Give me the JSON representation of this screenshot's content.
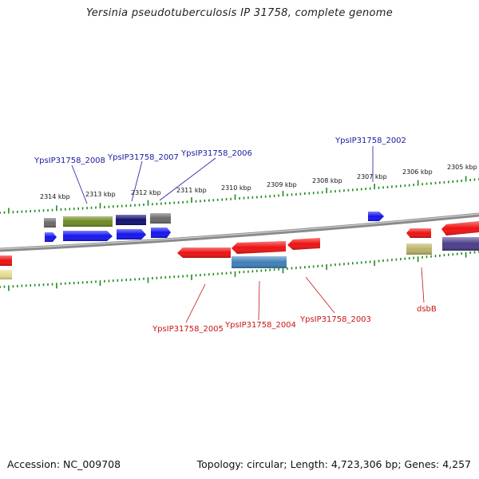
{
  "title": "Yersinia pseudotuberculosis IP 31758, complete genome",
  "accession": "Accession: NC_009708",
  "topology": "Topology: circular; Length: 4,723,306 bp; Genes: 4,257",
  "colors": {
    "backbone": "#8a8a8a",
    "tick": "#1e8c1e",
    "blue_label": "#1a1aa0",
    "red_label": "#c81414",
    "gene_red": "#ee1111",
    "gene_blue": "#1414ee",
    "gene_navy": "#101070",
    "gene_olive": "#6f8a22",
    "gene_grey": "#6a6a6a",
    "gene_steel": "#3f7fb8",
    "gene_khaki": "#b9b36a",
    "gene_purple": "#4a3c8a",
    "gene_yellow": "#e2dc8c"
  },
  "kbp_labels": [
    "2314 kbp",
    "2313 kbp",
    "2312 kbp",
    "2311 kbp",
    "2310 kbp",
    "2309 kbp",
    "2308 kbp",
    "2307 kbp",
    "2306 kbp",
    "2305 kbp"
  ],
  "forward_labels": [
    "YpsIP31758_2008",
    "YpsIP31758_2007",
    "YpsIP31758_2006",
    "YpsIP31758_2002"
  ],
  "reverse_labels": [
    "YpsIP31758_2005",
    "YpsIP31758_2004",
    "YpsIP31758_2003",
    "dsbB"
  ]
}
